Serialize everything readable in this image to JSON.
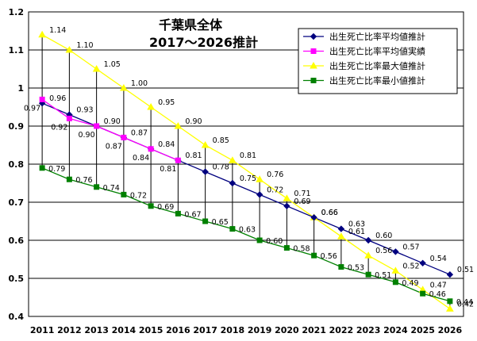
{
  "chart_data": {
    "type": "line",
    "title_lines": [
      "千葉県全体",
      "2017～2026推計"
    ],
    "x": [
      "2011",
      "2012",
      "2013",
      "2014",
      "2015",
      "2016",
      "2017",
      "2018",
      "2019",
      "2020",
      "2021",
      "2022",
      "2023",
      "2024",
      "2025",
      "2026"
    ],
    "ylim": [
      0.4,
      1.2
    ],
    "yticks": [
      "0.4",
      "0.5",
      "0.6",
      "0.7",
      "0.8",
      "0.9",
      "1",
      "1.1",
      "1.2"
    ],
    "grid": true,
    "legend_position": "top-right",
    "series": [
      {
        "name": "出生死亡比率平均値推計",
        "color": "#00007f",
        "marker": "diamond",
        "values": [
          0.96,
          0.93,
          0.9,
          0.87,
          0.84,
          0.81,
          0.78,
          0.75,
          0.72,
          0.69,
          0.66,
          0.63,
          0.6,
          0.57,
          0.54,
          0.51
        ],
        "labels": [
          "0.96",
          "0.93",
          "0.90",
          "0.87",
          "0.84",
          "0.81",
          "0.78",
          "0.75",
          "0.72",
          "0.69",
          "0.66",
          "0.63",
          "0.60",
          "0.57",
          "0.54",
          "0.51"
        ]
      },
      {
        "name": "出生死亡比率平均値実績",
        "color": "#ff00ff",
        "marker": "square",
        "values": [
          0.97,
          0.92,
          0.9,
          0.87,
          0.84,
          0.81,
          null,
          null,
          null,
          null,
          null,
          null,
          null,
          null,
          null,
          null
        ],
        "labels": [
          "0.97",
          "0.92",
          "0.90",
          "0.87",
          "0.84",
          "0.81",
          "",
          "",
          "",
          "",
          "",
          "",
          "",
          "",
          "",
          ""
        ]
      },
      {
        "name": "出生死亡比率最大値推計",
        "color": "#ffff00",
        "marker": "triangle",
        "values": [
          1.14,
          1.1,
          1.05,
          1.0,
          0.95,
          0.9,
          0.85,
          0.81,
          0.76,
          0.71,
          0.66,
          0.61,
          0.56,
          0.52,
          0.47,
          0.42
        ],
        "labels": [
          "1.14",
          "1.10",
          "1.05",
          "1.00",
          "0.95",
          "0.90",
          "0.85",
          "0.81",
          "0.76",
          "0.71",
          "0.66",
          "0.61",
          "0.56",
          "0.52",
          "0.47",
          "0.42"
        ]
      },
      {
        "name": "出生死亡比率最小値推計",
        "color": "#008000",
        "marker": "square",
        "values": [
          0.79,
          0.76,
          0.74,
          0.72,
          0.69,
          0.67,
          0.65,
          0.63,
          0.6,
          0.58,
          0.56,
          0.53,
          0.51,
          0.49,
          0.46,
          0.44
        ],
        "labels": [
          "0.79",
          "0.76",
          "0.74",
          "0.72",
          "0.69",
          "0.67",
          "0.65",
          "0.63",
          "0.60",
          "0.58",
          "0.56",
          "0.53",
          "0.51",
          "0.49",
          "0.46",
          "0.44"
        ]
      }
    ]
  }
}
